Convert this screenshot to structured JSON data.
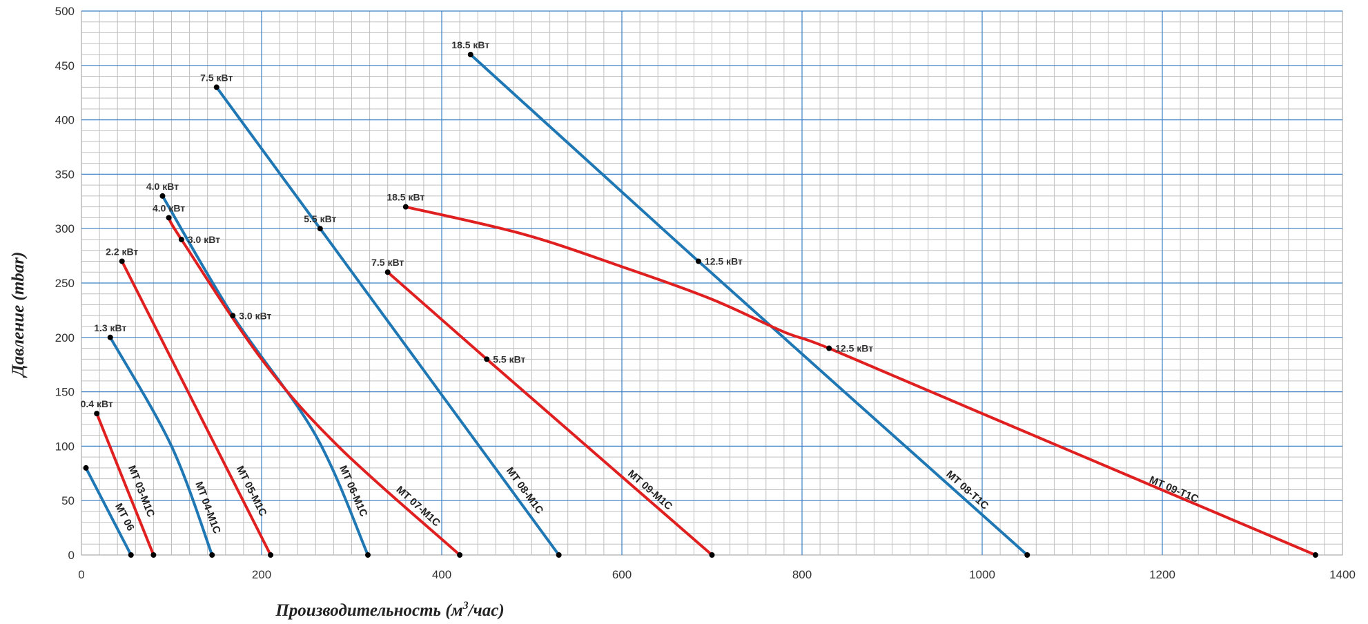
{
  "chart_data": {
    "type": "line",
    "title": "",
    "xlabel": "Производительность (м",
    "xlabel_sup": "3",
    "xlabel_tail": "/час)",
    "ylabel": "Давление (mbar)",
    "xlim": [
      0,
      1400
    ],
    "ylim": [
      0,
      500
    ],
    "x_ticks": [
      "0",
      "200",
      "400",
      "600",
      "800",
      "1000",
      "1200",
      "1400"
    ],
    "y_ticks": [
      "0",
      "50",
      "100",
      "150",
      "200",
      "250",
      "300",
      "350",
      "400",
      "450",
      "500"
    ],
    "grid": true,
    "colors": {
      "blue": "#1f77b4",
      "red": "#e02020",
      "grid_major": "#3b7fc4",
      "grid_minor": "#bfbfbf"
    },
    "series": [
      {
        "name": "МТ 06",
        "color": "blue",
        "points": [
          [
            5,
            80
          ],
          [
            55,
            0
          ]
        ],
        "markers": [
          [
            5,
            80,
            ""
          ],
          [
            55,
            0,
            ""
          ]
        ]
      },
      {
        "name": "МТ 03-М1С",
        "color": "red",
        "points": [
          [
            17,
            130
          ],
          [
            80,
            0
          ]
        ],
        "markers": [
          [
            17,
            130,
            "0.4 кВт"
          ],
          [
            80,
            0,
            ""
          ]
        ]
      },
      {
        "name": "МТ 04-М1С",
        "color": "blue",
        "points": [
          [
            32,
            200
          ],
          [
            100,
            100
          ],
          [
            145,
            0
          ]
        ],
        "markers": [
          [
            32,
            200,
            "1.3 кВт"
          ],
          [
            145,
            0,
            ""
          ]
        ]
      },
      {
        "name": "МТ 05-М1С",
        "color": "red",
        "points": [
          [
            45,
            270
          ],
          [
            210,
            0
          ]
        ],
        "markers": [
          [
            45,
            270,
            "2.2 кВт"
          ],
          [
            210,
            0,
            ""
          ]
        ]
      },
      {
        "name": "МТ 06-М1С",
        "color": "blue",
        "points": [
          [
            90,
            330
          ],
          [
            168,
            220
          ],
          [
            260,
            110
          ],
          [
            318,
            0
          ]
        ],
        "markers": [
          [
            90,
            330,
            "4.0 кВт"
          ],
          [
            168,
            220,
            "3.0 кВт"
          ],
          [
            318,
            0,
            ""
          ]
        ]
      },
      {
        "name": "МТ 07-М1С",
        "color": "red",
        "points": [
          [
            97,
            310
          ],
          [
            111,
            290
          ],
          [
            200,
            180
          ],
          [
            285,
            100
          ],
          [
            420,
            0
          ]
        ],
        "markers": [
          [
            97,
            310,
            "4.0 кВт"
          ],
          [
            111,
            290,
            "3.0 кВт"
          ],
          [
            420,
            0,
            ""
          ]
        ]
      },
      {
        "name": "МТ 08-М1С",
        "color": "blue",
        "points": [
          [
            150,
            430
          ],
          [
            265,
            300
          ],
          [
            530,
            0
          ]
        ],
        "markers": [
          [
            150,
            430,
            "7.5 кВт"
          ],
          [
            265,
            300,
            "5.5 кВт"
          ],
          [
            530,
            0,
            ""
          ]
        ]
      },
      {
        "name": "МТ 09-М1С",
        "color": "red",
        "points": [
          [
            340,
            260
          ],
          [
            450,
            180
          ],
          [
            700,
            0
          ]
        ],
        "markers": [
          [
            340,
            260,
            "7.5 кВт"
          ],
          [
            450,
            180,
            "5.5 кВт"
          ],
          [
            700,
            0,
            ""
          ]
        ]
      },
      {
        "name": "МТ 08-Т1С",
        "color": "blue",
        "points": [
          [
            432,
            460
          ],
          [
            685,
            270
          ],
          [
            1050,
            0
          ]
        ],
        "markers": [
          [
            432,
            460,
            "18.5 кВт"
          ],
          [
            685,
            270,
            "12.5 кВт"
          ],
          [
            1050,
            0,
            ""
          ]
        ]
      },
      {
        "name": "МТ 09-Т1С",
        "color": "red",
        "points": [
          [
            360,
            320
          ],
          [
            490,
            295
          ],
          [
            600,
            265
          ],
          [
            700,
            235
          ],
          [
            780,
            205
          ],
          [
            830,
            190
          ],
          [
            1000,
            130
          ],
          [
            1370,
            0
          ]
        ],
        "markers": [
          [
            360,
            320,
            "18.5 кВт"
          ],
          [
            830,
            190,
            "12.5 кВт"
          ],
          [
            1370,
            0,
            ""
          ]
        ]
      }
    ]
  }
}
